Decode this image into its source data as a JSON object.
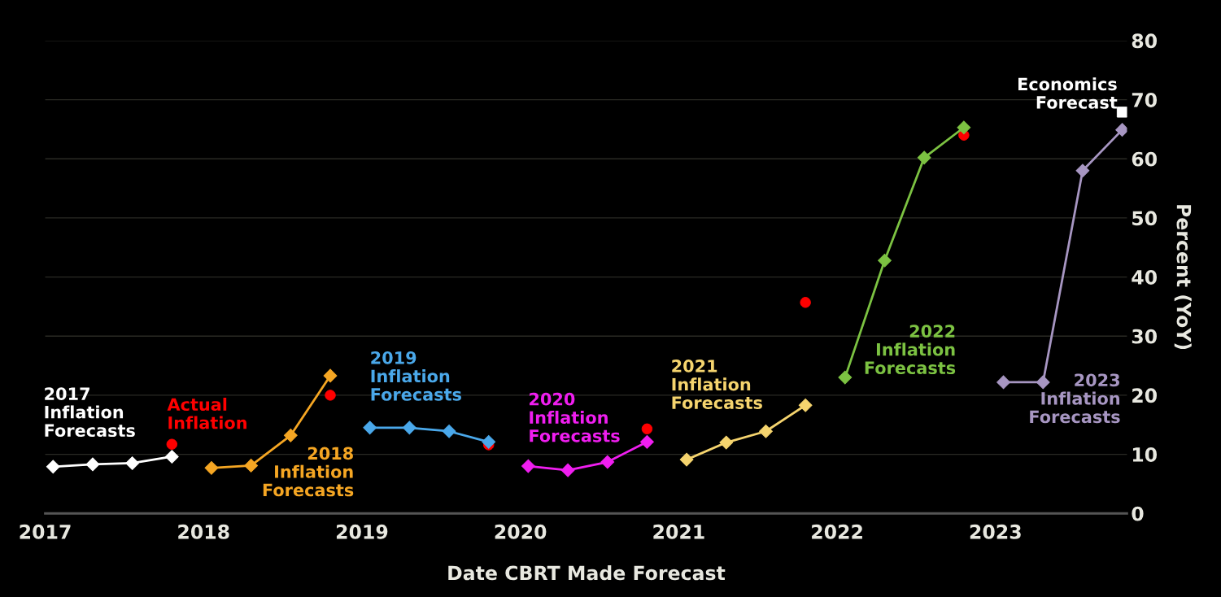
{
  "chart_data": {
    "type": "line",
    "xlabel": "Date CBRT Made Forecast",
    "ylabel": "Percent (YoY)",
    "xlim": [
      2017,
      2023.83
    ],
    "xticks": [
      2017,
      2018,
      2019,
      2020,
      2021,
      2022,
      2023
    ],
    "ylim": [
      0,
      80
    ],
    "yticks": [
      0,
      10,
      20,
      30,
      40,
      50,
      60,
      70,
      80
    ],
    "grid": "y",
    "legend": false,
    "marker": "diamond",
    "series": [
      {
        "name": "2017\nInflation\nForecasts",
        "color": "#ffffff",
        "x": [
          2017.05,
          2017.3,
          2017.55,
          2017.8
        ],
        "values": [
          7.9,
          8.3,
          8.5,
          9.6
        ]
      },
      {
        "name": "2018\nInflation\nForecasts",
        "color": "#f5a623",
        "x": [
          2018.05,
          2018.3,
          2018.55,
          2018.8
        ],
        "values": [
          7.7,
          8.1,
          13.2,
          23.3
        ]
      },
      {
        "name": "2019\nInflation\nForecasts",
        "color": "#4aa8ea",
        "x": [
          2019.05,
          2019.3,
          2019.55,
          2019.8
        ],
        "values": [
          14.5,
          14.5,
          13.9,
          12.1
        ]
      },
      {
        "name": "2020\nInflation\nForecasts",
        "color": "#f01ef0",
        "x": [
          2020.05,
          2020.3,
          2020.55,
          2020.8
        ],
        "values": [
          8.0,
          7.3,
          8.7,
          12.1
        ]
      },
      {
        "name": "2021\nInflation\nForecasts",
        "color": "#f5d46e",
        "x": [
          2021.05,
          2021.3,
          2021.55,
          2021.8
        ],
        "values": [
          9.1,
          12.0,
          13.9,
          18.3
        ]
      },
      {
        "name": "2022\nInflation\nForecasts",
        "color": "#7cc242",
        "x": [
          2022.05,
          2022.3,
          2022.55,
          2022.8
        ],
        "values": [
          23.0,
          42.8,
          60.2,
          65.3
        ]
      },
      {
        "name": "2023\nInflation\nForecasts",
        "color": "#a796c2",
        "x": [
          2023.05,
          2023.3,
          2023.55,
          2023.8
        ],
        "values": [
          22.2,
          22.2,
          58.0,
          64.9
        ]
      },
      {
        "name": "Actual\nInflation",
        "type": "scatter",
        "marker": "circle",
        "color": "#ff0000",
        "x": [
          2017.8,
          2018.8,
          2019.8,
          2020.8,
          2021.8,
          2022.8
        ],
        "values": [
          11.7,
          20.0,
          11.6,
          14.3,
          35.7,
          64.0
        ]
      },
      {
        "name": "Economics\nForecast",
        "type": "scatter",
        "marker": "square",
        "color": "#ffffff",
        "x": [
          2023.8
        ],
        "values": [
          67.9
        ]
      }
    ]
  }
}
